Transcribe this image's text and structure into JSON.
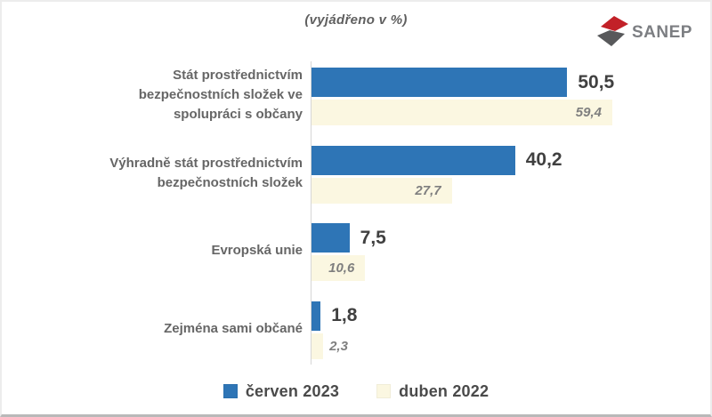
{
  "page": {
    "title": "(vyjádřeno v %)"
  },
  "logo": {
    "text": "SANEP",
    "red": "#C22128",
    "gray": "#58595B",
    "text_color": "#7c7e82"
  },
  "chart_data": {
    "type": "bar",
    "orientation": "horizontal",
    "title": "(vyjádřeno v %)",
    "categories": [
      "Stát prostřednictvím bezpečnostních složek ve spolupráci s občany",
      "Výhradně stát prostřednictvím bezpečnostních složek",
      "Evropská unie",
      "Zejména sami občané"
    ],
    "series": [
      {
        "name": "červen 2023",
        "color": "#2E75B6",
        "values": [
          50.5,
          40.2,
          7.5,
          1.8
        ],
        "value_labels": [
          "50,5",
          "40,2",
          "7,5",
          "1,8"
        ]
      },
      {
        "name": "duben 2022",
        "color": "#FBF7E1",
        "values": [
          59.4,
          27.7,
          10.6,
          2.3
        ],
        "value_labels": [
          "59,4",
          "27,7",
          "10,6",
          "2,3"
        ]
      }
    ],
    "xlim": [
      0,
      62
    ],
    "grid": false,
    "legend_position": "bottom",
    "axis_color": "#d6d6d6"
  }
}
